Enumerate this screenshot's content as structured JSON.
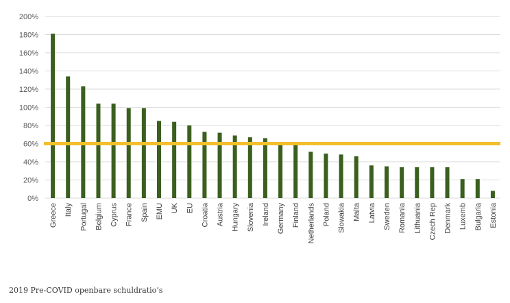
{
  "chart_data": {
    "type": "bar",
    "categories": [
      "Greece",
      "Italy",
      "Portugal",
      "Belgium",
      "Cyprus",
      "France",
      "Spain",
      "EMU",
      "UK",
      "EU",
      "Croatia",
      "Austria",
      "Hungary",
      "Slovenia",
      "Ireland",
      "Germany",
      "Finland",
      "Netherlands",
      "Poland",
      "Slowakia",
      "Malta",
      "Latvia",
      "Sweden",
      "Romania",
      "Lithuania",
      "Czech Rep",
      "Denmark",
      "Luxemb",
      "Bulgaria",
      "Estonia"
    ],
    "values": [
      181,
      134,
      123,
      104,
      104,
      99,
      99,
      85,
      84,
      80,
      73,
      72,
      69,
      67,
      66,
      61,
      59,
      51,
      49,
      48,
      46,
      36,
      35,
      34,
      34,
      34,
      34,
      21,
      21,
      8
    ],
    "reference_line": 60,
    "ylim": [
      0,
      200
    ],
    "yticks": [
      "0%",
      "20%",
      "40%",
      "60%",
      "80%",
      "100%",
      "120%",
      "140%",
      "160%",
      "180%",
      "200%"
    ],
    "grid": true,
    "colors": {
      "bar": "#3a5f1e",
      "reference_line": "#f2c02e",
      "grid": "#d9d9d9"
    }
  },
  "caption": "2019 Pre-COVID openbare schuldratio’s"
}
